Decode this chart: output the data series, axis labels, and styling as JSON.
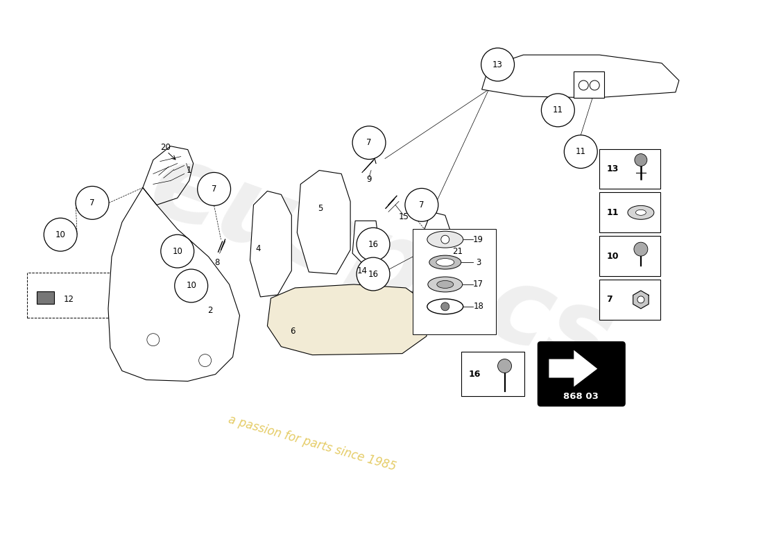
{
  "bg": "#ffffff",
  "watermark": "a passion for parts since 1985",
  "part_code": "868 03",
  "fig_w": 11.0,
  "fig_h": 8.0,
  "dpi": 100
}
